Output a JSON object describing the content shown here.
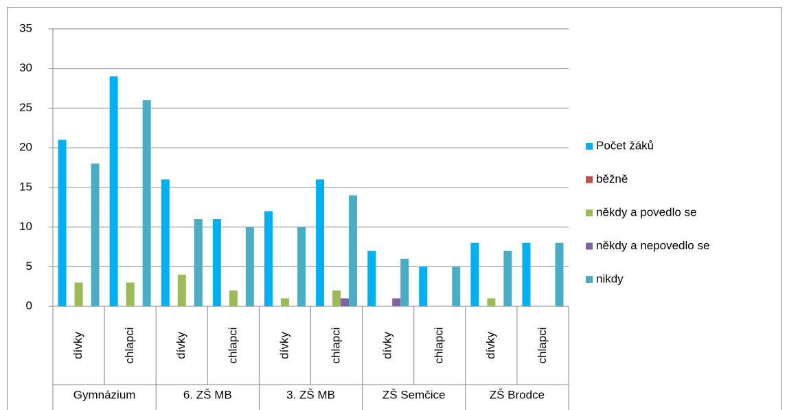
{
  "chart_data": {
    "type": "bar",
    "categories": [
      "dívky",
      "chlapci",
      "dívky",
      "chlapci",
      "dívky",
      "chlapci",
      "dívky",
      "chlapci",
      "dívky",
      "chlapci"
    ],
    "groups": [
      "Gymnázium",
      "6. ZŠ MB",
      "3. ZŠ MB",
      "ZŠ Semčice",
      "ZŠ Brodce"
    ],
    "series": [
      {
        "name": "Počet žáků",
        "color": "#00b0f0",
        "values": [
          21,
          29,
          16,
          11,
          12,
          16,
          7,
          5,
          8,
          8
        ]
      },
      {
        "name": "běžně",
        "color": "#c0504d",
        "values": [
          0,
          0,
          0,
          0,
          0,
          0,
          0,
          0,
          0,
          0
        ]
      },
      {
        "name": "někdy a povedlo se",
        "color": "#9bbb59",
        "values": [
          3,
          3,
          4,
          2,
          1,
          2,
          0,
          0,
          1,
          0
        ]
      },
      {
        "name": "někdy a nepovedlo se",
        "color": "#8064a2",
        "values": [
          0,
          0,
          0,
          0,
          0,
          1,
          1,
          0,
          0,
          0
        ]
      },
      {
        "name": "nikdy",
        "color": "#4bacc6",
        "values": [
          18,
          26,
          11,
          10,
          10,
          14,
          6,
          5,
          7,
          8
        ]
      }
    ],
    "ylim": [
      0,
      35
    ],
    "yticks": [
      0,
      5,
      10,
      15,
      20,
      25,
      30,
      35
    ],
    "grid": true,
    "legend": "right"
  }
}
